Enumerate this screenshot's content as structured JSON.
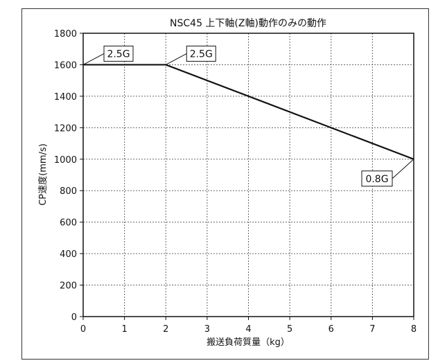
{
  "chart_data": {
    "type": "line",
    "title": "NSC45 上下軸(Z軸)動作のみの動作",
    "xlabel": "搬送負荷質量（kg）",
    "ylabel": "CP速度(mm/s)",
    "xlim": [
      0,
      8
    ],
    "ylim": [
      0,
      1800
    ],
    "x_ticks": [
      0,
      1,
      2,
      3,
      4,
      5,
      6,
      7,
      8
    ],
    "y_ticks": [
      0,
      200,
      400,
      600,
      800,
      1000,
      1200,
      1400,
      1600,
      1800
    ],
    "grid": true,
    "series": [
      {
        "x": [
          0,
          2,
          8
        ],
        "y": [
          1600,
          1600,
          1000
        ]
      }
    ],
    "annotations": [
      {
        "text": "2.5G",
        "x": 0,
        "y": 1600
      },
      {
        "text": "2.5G",
        "x": 2,
        "y": 1600
      },
      {
        "text": "0.8G",
        "x": 8,
        "y": 1000
      }
    ]
  }
}
